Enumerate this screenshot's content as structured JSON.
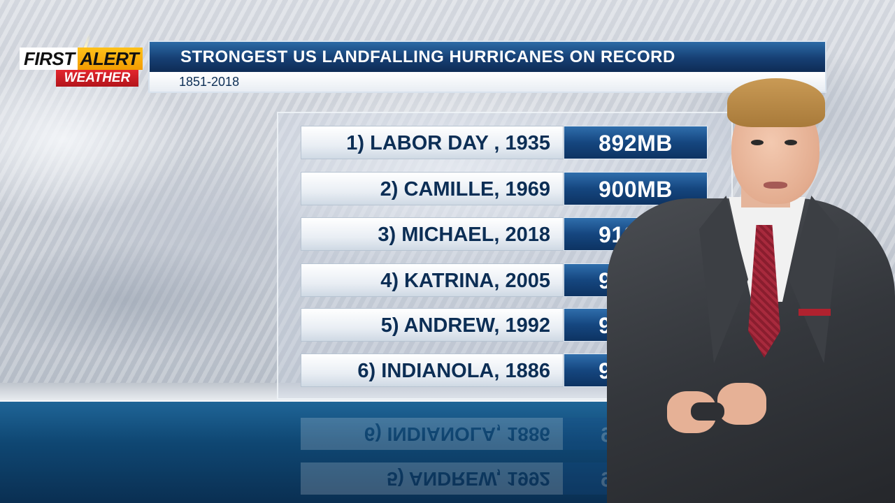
{
  "logo": {
    "first": "FIRST",
    "alert": "ALERT",
    "weather": "WEATHER"
  },
  "header": {
    "title": "STRONGEST US LANDFALLING HURRICANES ON RECORD",
    "subtitle": "1851-2018"
  },
  "rankings": [
    {
      "name": "1) LABOR DAY , 1935",
      "pressure": "892MB"
    },
    {
      "name": "2) CAMILLE, 1969",
      "pressure": "900MB"
    },
    {
      "name": "3) MICHAEL, 2018",
      "pressure": "919MB"
    },
    {
      "name": "4) KATRINA, 2005",
      "pressure": "920MB"
    },
    {
      "name": "5) ANDREW, 1992",
      "pressure": "922MB"
    },
    {
      "name": "6) INDIANOLA, 1886",
      "pressure": "925MB"
    }
  ],
  "colors": {
    "navy": "#0c2e55",
    "banner_blue": "#163f73",
    "alert_yellow": "#f29b00",
    "weather_red": "#d21f27"
  }
}
